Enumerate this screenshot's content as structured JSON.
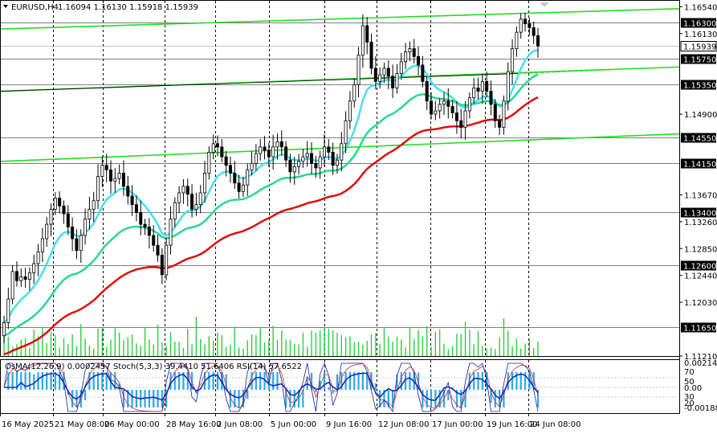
{
  "header": {
    "symbol": "EURUSD,H4",
    "ohlc": "1.16094 1.16130 1.15918 1.15939"
  },
  "indicator_header": "OsMA(12,26,9) 0.0002457  Stoch(5,3,3) 39.4410 51.6406  RSI(14) 57.6522",
  "colors": {
    "background": "#ffffff",
    "grid": "#000000",
    "candle": "#000000",
    "volume": "#2ecc40",
    "ema_short": "#40e0f0",
    "ema_mid": "#20d890",
    "ema_long": "#e00000",
    "channel": "#22dd22",
    "osma_hist": "#2aa8e8",
    "stoch_main": "#1a1aa0",
    "stoch_signal": "#c03030",
    "rsi": "#1030c0"
  },
  "chart_data": {
    "type": "candlestick",
    "symbol": "EURUSD",
    "timeframe": "H4",
    "ylim": [
      1.1121,
      1.1663
    ],
    "x_tick_labels": [
      "16 May 2025",
      "21 May 08:00",
      "26 May 00:00",
      "28 May 16:00",
      "2 Jun 08:00",
      "5 Jun 00:00",
      "9 Jun 16:00",
      "12 Jun 08:00",
      "17 Jun 00:00",
      "19 Jun 16:00",
      "24 Jun 08:00"
    ],
    "price_axis_labels": [
      "1.16540",
      "1.16130",
      "1.15720",
      "1.15310",
      "1.14900",
      "1.14490",
      "1.14080",
      "1.13670",
      "1.13260",
      "1.12850",
      "1.12440",
      "1.12030",
      "1.11620",
      "1.11210"
    ],
    "level_labels": [
      "1.16300",
      "1.15750",
      "1.15350",
      "1.14550",
      "1.14150",
      "1.13400",
      "1.12600",
      "1.11650"
    ],
    "current_price_label": "1.15939",
    "close_series": [
      1.1172,
      1.1208,
      1.125,
      1.1236,
      1.1242,
      1.1238,
      1.1248,
      1.1262,
      1.128,
      1.13,
      1.1322,
      1.1345,
      1.1362,
      1.135,
      1.1338,
      1.1318,
      1.13,
      1.1282,
      1.1305,
      1.133,
      1.1345,
      1.1358,
      1.1395,
      1.1412,
      1.1405,
      1.1388,
      1.1392,
      1.14,
      1.138,
      1.1365,
      1.1352,
      1.134,
      1.1322,
      1.1318,
      1.1305,
      1.129,
      1.1275,
      1.1245,
      1.129,
      1.133,
      1.1355,
      1.137,
      1.138,
      1.1368,
      1.1345,
      1.1352,
      1.137,
      1.14,
      1.1432,
      1.1445,
      1.144,
      1.1425,
      1.1412,
      1.14,
      1.1385,
      1.1372,
      1.1382,
      1.1405,
      1.1415,
      1.143,
      1.144,
      1.1435,
      1.1425,
      1.144,
      1.1448,
      1.144,
      1.142,
      1.1402,
      1.141,
      1.1418,
      1.1425,
      1.143,
      1.1415,
      1.1408,
      1.1425,
      1.144,
      1.1432,
      1.1412,
      1.142,
      1.1445,
      1.148,
      1.151,
      1.1535,
      1.158,
      1.1625,
      1.16,
      1.156,
      1.154,
      1.155,
      1.156,
      1.1548,
      1.153,
      1.1552,
      1.157,
      1.1585,
      1.159,
      1.1578,
      1.1565,
      1.154,
      1.151,
      1.149,
      1.1495,
      1.1505,
      1.151,
      1.1502,
      1.1492,
      1.148,
      1.147,
      1.1495,
      1.1515,
      1.153,
      1.1525,
      1.154,
      1.1525,
      1.1505,
      1.148,
      1.147,
      1.151,
      1.1555,
      1.159,
      1.1615,
      1.1635,
      1.1628,
      1.1622,
      1.161,
      1.1594
    ],
    "moving_averages": [
      {
        "start": [
          1.1221,
          1.1222
        ],
        "end": [
          1.154,
          1.154
        ]
      },
      {
        "start": [
          1.1225,
          1.1225
        ],
        "end": [
          1.1455,
          1.1455
        ]
      },
      {
        "start": [
          1.1192,
          1.1192
        ],
        "end": [
          1.1415,
          1.1415
        ]
      }
    ],
    "channel_lines": [
      {
        "start": 1.162,
        "end": 1.1651
      },
      {
        "start": 1.1525,
        "end": 1.1562
      },
      {
        "start": 1.1418,
        "end": 1.146
      }
    ],
    "indicator_axis_labels": [
      "0.0021423",
      "70",
      "50",
      "0.00",
      "30",
      "20",
      "-0.001883"
    ]
  }
}
